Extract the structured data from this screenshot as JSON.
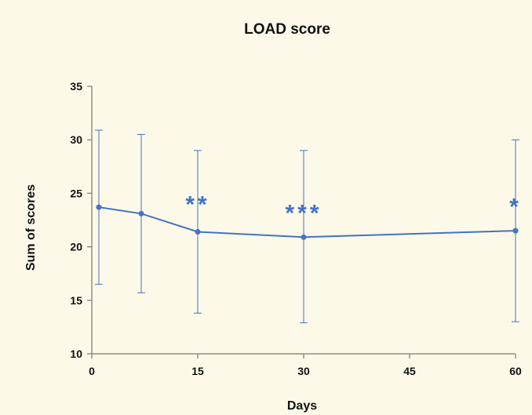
{
  "chart_data": {
    "type": "line",
    "title": "LOAD score",
    "xlabel": "Days",
    "ylabel": "Sum of scores",
    "xlim": [
      0,
      60
    ],
    "ylim": [
      10,
      35
    ],
    "xticks": [
      0,
      15,
      30,
      45,
      60
    ],
    "yticks": [
      10,
      15,
      20,
      25,
      30,
      35
    ],
    "grid": false,
    "legend": "none",
    "series": [
      {
        "x": [
          1,
          7,
          15,
          30,
          60
        ],
        "y": [
          23.7,
          23.1,
          21.4,
          20.9,
          21.5
        ],
        "error_low": [
          16.5,
          15.7,
          13.8,
          12.9,
          13.0
        ],
        "error_high": [
          30.9,
          30.5,
          29.0,
          29.0,
          30.0
        ]
      }
    ],
    "annotations": [
      {
        "text": "**",
        "x": 15,
        "y": 24.1
      },
      {
        "text": "***",
        "x": 30,
        "y": 23.3
      },
      {
        "text": "*",
        "x": 60,
        "y": 23.9
      }
    ],
    "colors": {
      "series": "#4472c4",
      "axis": "#777777",
      "text": "#111111"
    }
  }
}
